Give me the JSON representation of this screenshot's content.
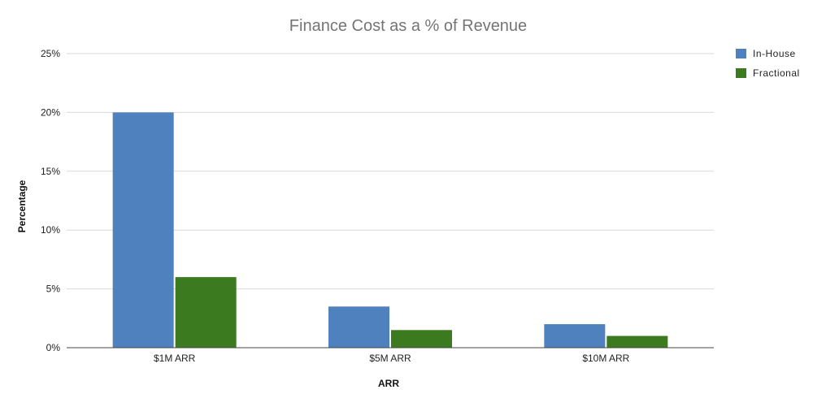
{
  "chart_data": {
    "type": "bar",
    "title": "Finance Cost as a % of Revenue",
    "xlabel": "ARR",
    "ylabel": "Percentage",
    "categories": [
      "$1M ARR",
      "$5M ARR",
      "$10M ARR"
    ],
    "series": [
      {
        "name": "In-House",
        "color": "#4e81bd",
        "values": [
          20,
          3.5,
          2
        ]
      },
      {
        "name": "Fractional",
        "color": "#3b7a1f",
        "values": [
          6,
          1.5,
          1
        ]
      }
    ],
    "ylim": [
      0,
      25
    ],
    "yticks": [
      0,
      5,
      10,
      15,
      20,
      25
    ],
    "ytick_labels": [
      "0%",
      "5%",
      "10%",
      "15%",
      "20%",
      "25%"
    ],
    "grid": true,
    "legend_position": "top-right"
  }
}
